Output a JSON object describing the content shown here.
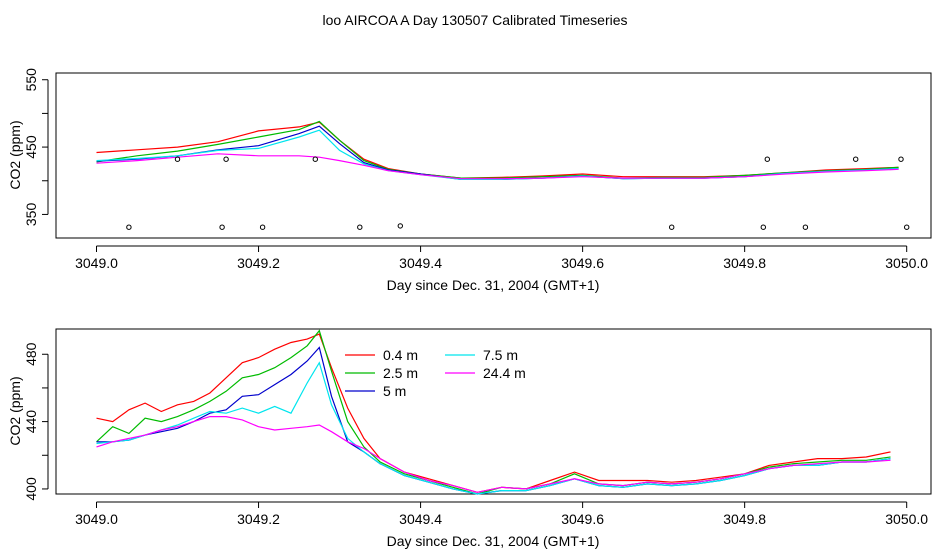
{
  "title": "loo AIRCOA A  Day 130507  Calibrated Timeseries",
  "colors": {
    "0.4 m": "#ff0000",
    "2.5 m": "#00bb00",
    "5 m": "#0000cc",
    "7.5 m": "#00e5ee",
    "24.4 m": "#ff00ff"
  },
  "chart_data": [
    {
      "type": "line",
      "xlabel": "Day since Dec. 31, 2004 (GMT+1)",
      "ylabel": "CO2 (ppm)",
      "xlim": [
        3049.0,
        3050.0
      ],
      "ylim": [
        315,
        560
      ],
      "xticks": [
        "3049.0",
        "3049.2",
        "3049.4",
        "3049.6",
        "3049.8",
        "3050.0"
      ],
      "yticks": [
        "350",
        "450",
        "550"
      ],
      "x": [
        3049.0,
        3049.05,
        3049.1,
        3049.15,
        3049.2,
        3049.25,
        3049.275,
        3049.3,
        3049.33,
        3049.36,
        3049.4,
        3049.45,
        3049.5,
        3049.55,
        3049.6,
        3049.65,
        3049.7,
        3049.75,
        3049.8,
        3049.85,
        3049.9,
        3049.95,
        3049.99
      ],
      "series": [
        {
          "name": "0.4 m",
          "values": [
            442,
            446,
            450,
            458,
            474,
            480,
            487,
            460,
            432,
            418,
            410,
            404,
            405,
            407,
            410,
            406,
            406,
            406,
            408,
            412,
            416,
            418,
            420
          ]
        },
        {
          "name": "2.5 m",
          "values": [
            428,
            437,
            444,
            454,
            465,
            476,
            488,
            460,
            430,
            417,
            410,
            404,
            404,
            406,
            408,
            404,
            405,
            405,
            408,
            412,
            415,
            417,
            420
          ]
        },
        {
          "name": "5 m",
          "values": [
            429,
            432,
            437,
            446,
            452,
            470,
            481,
            455,
            427,
            416,
            410,
            402,
            402,
            404,
            407,
            403,
            404,
            404,
            406,
            411,
            414,
            416,
            418
          ]
        },
        {
          "name": "7.5 m",
          "values": [
            430,
            433,
            437,
            445,
            448,
            465,
            475,
            445,
            425,
            415,
            409,
            402,
            402,
            404,
            407,
            403,
            404,
            404,
            406,
            411,
            414,
            416,
            418
          ]
        },
        {
          "name": "24.4 m",
          "values": [
            426,
            430,
            435,
            440,
            437,
            437,
            435,
            430,
            423,
            415,
            409,
            403,
            403,
            404,
            406,
            404,
            404,
            404,
            406,
            410,
            413,
            415,
            417
          ]
        }
      ],
      "markers": {
        "x": [
          3049.04,
          3049.1,
          3049.155,
          3049.16,
          3049.205,
          3049.27,
          3049.325,
          3049.375,
          3049.71,
          3049.823,
          3049.828,
          3049.875,
          3049.937,
          3049.993,
          3050.0
        ],
        "y": [
          331,
          432,
          331,
          432,
          331,
          432,
          331,
          333,
          331,
          331,
          432,
          331,
          432,
          432,
          331
        ]
      }
    },
    {
      "type": "line",
      "xlabel": "Day since Dec. 31, 2004 (GMT+1)",
      "ylabel": "CO2 (ppm)",
      "xlim": [
        3049.0,
        3050.0
      ],
      "ylim": [
        397,
        495
      ],
      "xticks": [
        "3049.0",
        "3049.2",
        "3049.4",
        "3049.6",
        "3049.8",
        "3050.0"
      ],
      "yticks": [
        "400",
        "440",
        "480"
      ],
      "legend_position": "top-center",
      "x": [
        3049.0,
        3049.02,
        3049.04,
        3049.06,
        3049.08,
        3049.1,
        3049.12,
        3049.14,
        3049.16,
        3049.18,
        3049.2,
        3049.22,
        3049.24,
        3049.26,
        3049.275,
        3049.29,
        3049.31,
        3049.33,
        3049.35,
        3049.38,
        3049.41,
        3049.44,
        3049.47,
        3049.5,
        3049.53,
        3049.56,
        3049.59,
        3049.62,
        3049.65,
        3049.68,
        3049.71,
        3049.74,
        3049.77,
        3049.8,
        3049.83,
        3049.86,
        3049.89,
        3049.92,
        3049.95,
        3049.98
      ],
      "series": [
        {
          "name": "0.4 m",
          "values": [
            442,
            440,
            447,
            451,
            446,
            450,
            452,
            457,
            466,
            475,
            478,
            483,
            487,
            489,
            492,
            472,
            448,
            430,
            418,
            410,
            406,
            402,
            398,
            401,
            400,
            405,
            410,
            405,
            405,
            405,
            404,
            405,
            407,
            409,
            414,
            416,
            418,
            418,
            419,
            422
          ]
        },
        {
          "name": "2.5 m",
          "values": [
            428,
            437,
            433,
            442,
            440,
            443,
            447,
            452,
            458,
            466,
            468,
            472,
            478,
            485,
            494,
            470,
            440,
            425,
            416,
            409,
            405,
            401,
            397,
            401,
            400,
            403,
            409,
            403,
            402,
            404,
            403,
            404,
            406,
            409,
            413,
            415,
            416,
            417,
            417,
            419
          ]
        },
        {
          "name": "5 m",
          "values": [
            428,
            428,
            429,
            432,
            434,
            436,
            440,
            445,
            447,
            455,
            456,
            462,
            468,
            476,
            484,
            455,
            428,
            422,
            415,
            408,
            404,
            400,
            397,
            399,
            399,
            402,
            406,
            402,
            401,
            403,
            402,
            403,
            405,
            408,
            412,
            414,
            414,
            416,
            416,
            418
          ]
        },
        {
          "name": "7.5 m",
          "values": [
            427,
            428,
            429,
            432,
            435,
            438,
            442,
            446,
            445,
            448,
            445,
            449,
            445,
            463,
            475,
            450,
            430,
            422,
            415,
            408,
            404,
            400,
            397,
            399,
            399,
            402,
            406,
            402,
            401,
            403,
            402,
            403,
            405,
            408,
            412,
            414,
            414,
            416,
            416,
            418
          ]
        },
        {
          "name": "24.4 m",
          "values": [
            425,
            428,
            430,
            432,
            435,
            437,
            440,
            443,
            443,
            441,
            437,
            435,
            436,
            437,
            438,
            434,
            428,
            424,
            418,
            410,
            405,
            402,
            398,
            401,
            400,
            403,
            406,
            403,
            402,
            404,
            403,
            404,
            406,
            409,
            412,
            414,
            415,
            416,
            416,
            417
          ]
        }
      ]
    }
  ]
}
